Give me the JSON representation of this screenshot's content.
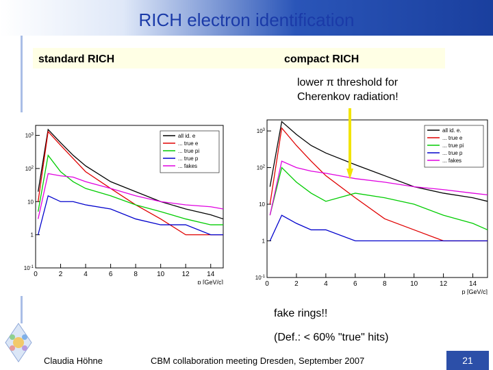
{
  "slide": {
    "title": "RICH electron identification",
    "left_label": "standard RICH",
    "right_label": "compact RICH",
    "note_line1": "lower π threshold for",
    "note_line2": "Cherenkov radiation!",
    "caption1": "fake rings!!",
    "caption2": "(Def.: < 60% \"true\" hits)",
    "footer_author": "Claudia Höhne",
    "footer_event": "CBM collaboration meeting Dresden, September 2007",
    "page_number": "21",
    "accent_color": "#1a3aa8",
    "arrow_color": "#f2e400"
  },
  "chart_data": [
    {
      "type": "line",
      "xlabel": "p [GeV/c]",
      "ylabel": "",
      "log_y": true,
      "xlim": [
        0,
        15
      ],
      "ylim": [
        0.1,
        2000
      ],
      "x_ticks": [
        "0",
        "2",
        "4",
        "6",
        "8",
        "10",
        "12",
        "14"
      ],
      "y_ticks": [
        "10^-1",
        "1",
        "10",
        "10^2",
        "10^3"
      ],
      "legend": [
        "all id. e",
        "... true e",
        "... true pi",
        "... true p",
        "... fakes"
      ],
      "legend_position": "top-right",
      "series": [
        {
          "name": "all id. e",
          "color": "#000000",
          "x": [
            0.2,
            1,
            2,
            3,
            4,
            6,
            8,
            10,
            12,
            14,
            15
          ],
          "values": [
            20,
            1500,
            600,
            250,
            120,
            40,
            20,
            10,
            6,
            4,
            3
          ]
        },
        {
          "name": "... true e",
          "color": "#e00000",
          "x": [
            0.2,
            1,
            2,
            3,
            4,
            6,
            8,
            10,
            12,
            14,
            15
          ],
          "values": [
            10,
            1300,
            500,
            200,
            80,
            25,
            8,
            3,
            1,
            1,
            1
          ]
        },
        {
          "name": "... true pi",
          "color": "#00cc00",
          "x": [
            0.2,
            1,
            2,
            3,
            4,
            6,
            8,
            10,
            12,
            14,
            15
          ],
          "values": [
            5,
            250,
            80,
            40,
            25,
            15,
            8,
            5,
            3,
            2,
            2
          ]
        },
        {
          "name": "... true p",
          "color": "#0000cc",
          "x": [
            0.2,
            1,
            2,
            3,
            4,
            6,
            8,
            10,
            12,
            14,
            15
          ],
          "values": [
            1,
            15,
            10,
            10,
            8,
            6,
            3,
            2,
            2,
            1,
            1
          ]
        },
        {
          "name": "... fakes",
          "color": "#e000e0",
          "x": [
            0.2,
            1,
            2,
            3,
            4,
            6,
            8,
            10,
            12,
            14,
            15
          ],
          "values": [
            3,
            70,
            60,
            55,
            40,
            25,
            15,
            10,
            8,
            7,
            6
          ]
        }
      ]
    },
    {
      "type": "line",
      "xlabel": "p [GeV/c]",
      "ylabel": "",
      "log_y": true,
      "xlim": [
        0,
        15
      ],
      "ylim": [
        0.1,
        2000
      ],
      "x_ticks": [
        "0",
        "2",
        "4",
        "6",
        "8",
        "10",
        "12",
        "14"
      ],
      "y_ticks": [
        "10^-1",
        "1",
        "10",
        "10^2",
        "10^3"
      ],
      "legend": [
        "all id. e.",
        "... true e",
        "... true pi",
        "... true p",
        "... fakes"
      ],
      "legend_position": "top-right",
      "series": [
        {
          "name": "all id. e.",
          "color": "#000000",
          "x": [
            0.2,
            1,
            2,
            3,
            4,
            6,
            8,
            10,
            12,
            14,
            15
          ],
          "values": [
            30,
            1800,
            800,
            400,
            250,
            120,
            60,
            30,
            20,
            15,
            12
          ]
        },
        {
          "name": "... true e",
          "color": "#e00000",
          "x": [
            0.2,
            1,
            2,
            3,
            4,
            6,
            8,
            10,
            12,
            14,
            15
          ],
          "values": [
            10,
            1200,
            400,
            150,
            60,
            15,
            4,
            2,
            1,
            1,
            1
          ]
        },
        {
          "name": "... true pi",
          "color": "#00cc00",
          "x": [
            0.2,
            1,
            2,
            3,
            4,
            6,
            8,
            10,
            12,
            14,
            15
          ],
          "values": [
            5,
            100,
            40,
            20,
            12,
            20,
            15,
            10,
            5,
            3,
            2
          ]
        },
        {
          "name": "... true p",
          "color": "#0000cc",
          "x": [
            0.2,
            1,
            2,
            3,
            4,
            6,
            8,
            10,
            12,
            14,
            15
          ],
          "values": [
            1,
            5,
            3,
            2,
            2,
            1,
            1,
            1,
            1,
            1,
            1
          ]
        },
        {
          "name": "... fakes",
          "color": "#e000e0",
          "x": [
            0.2,
            1,
            2,
            3,
            4,
            6,
            8,
            10,
            12,
            14,
            15
          ],
          "values": [
            5,
            150,
            100,
            80,
            70,
            50,
            40,
            30,
            25,
            20,
            18
          ]
        }
      ]
    }
  ]
}
